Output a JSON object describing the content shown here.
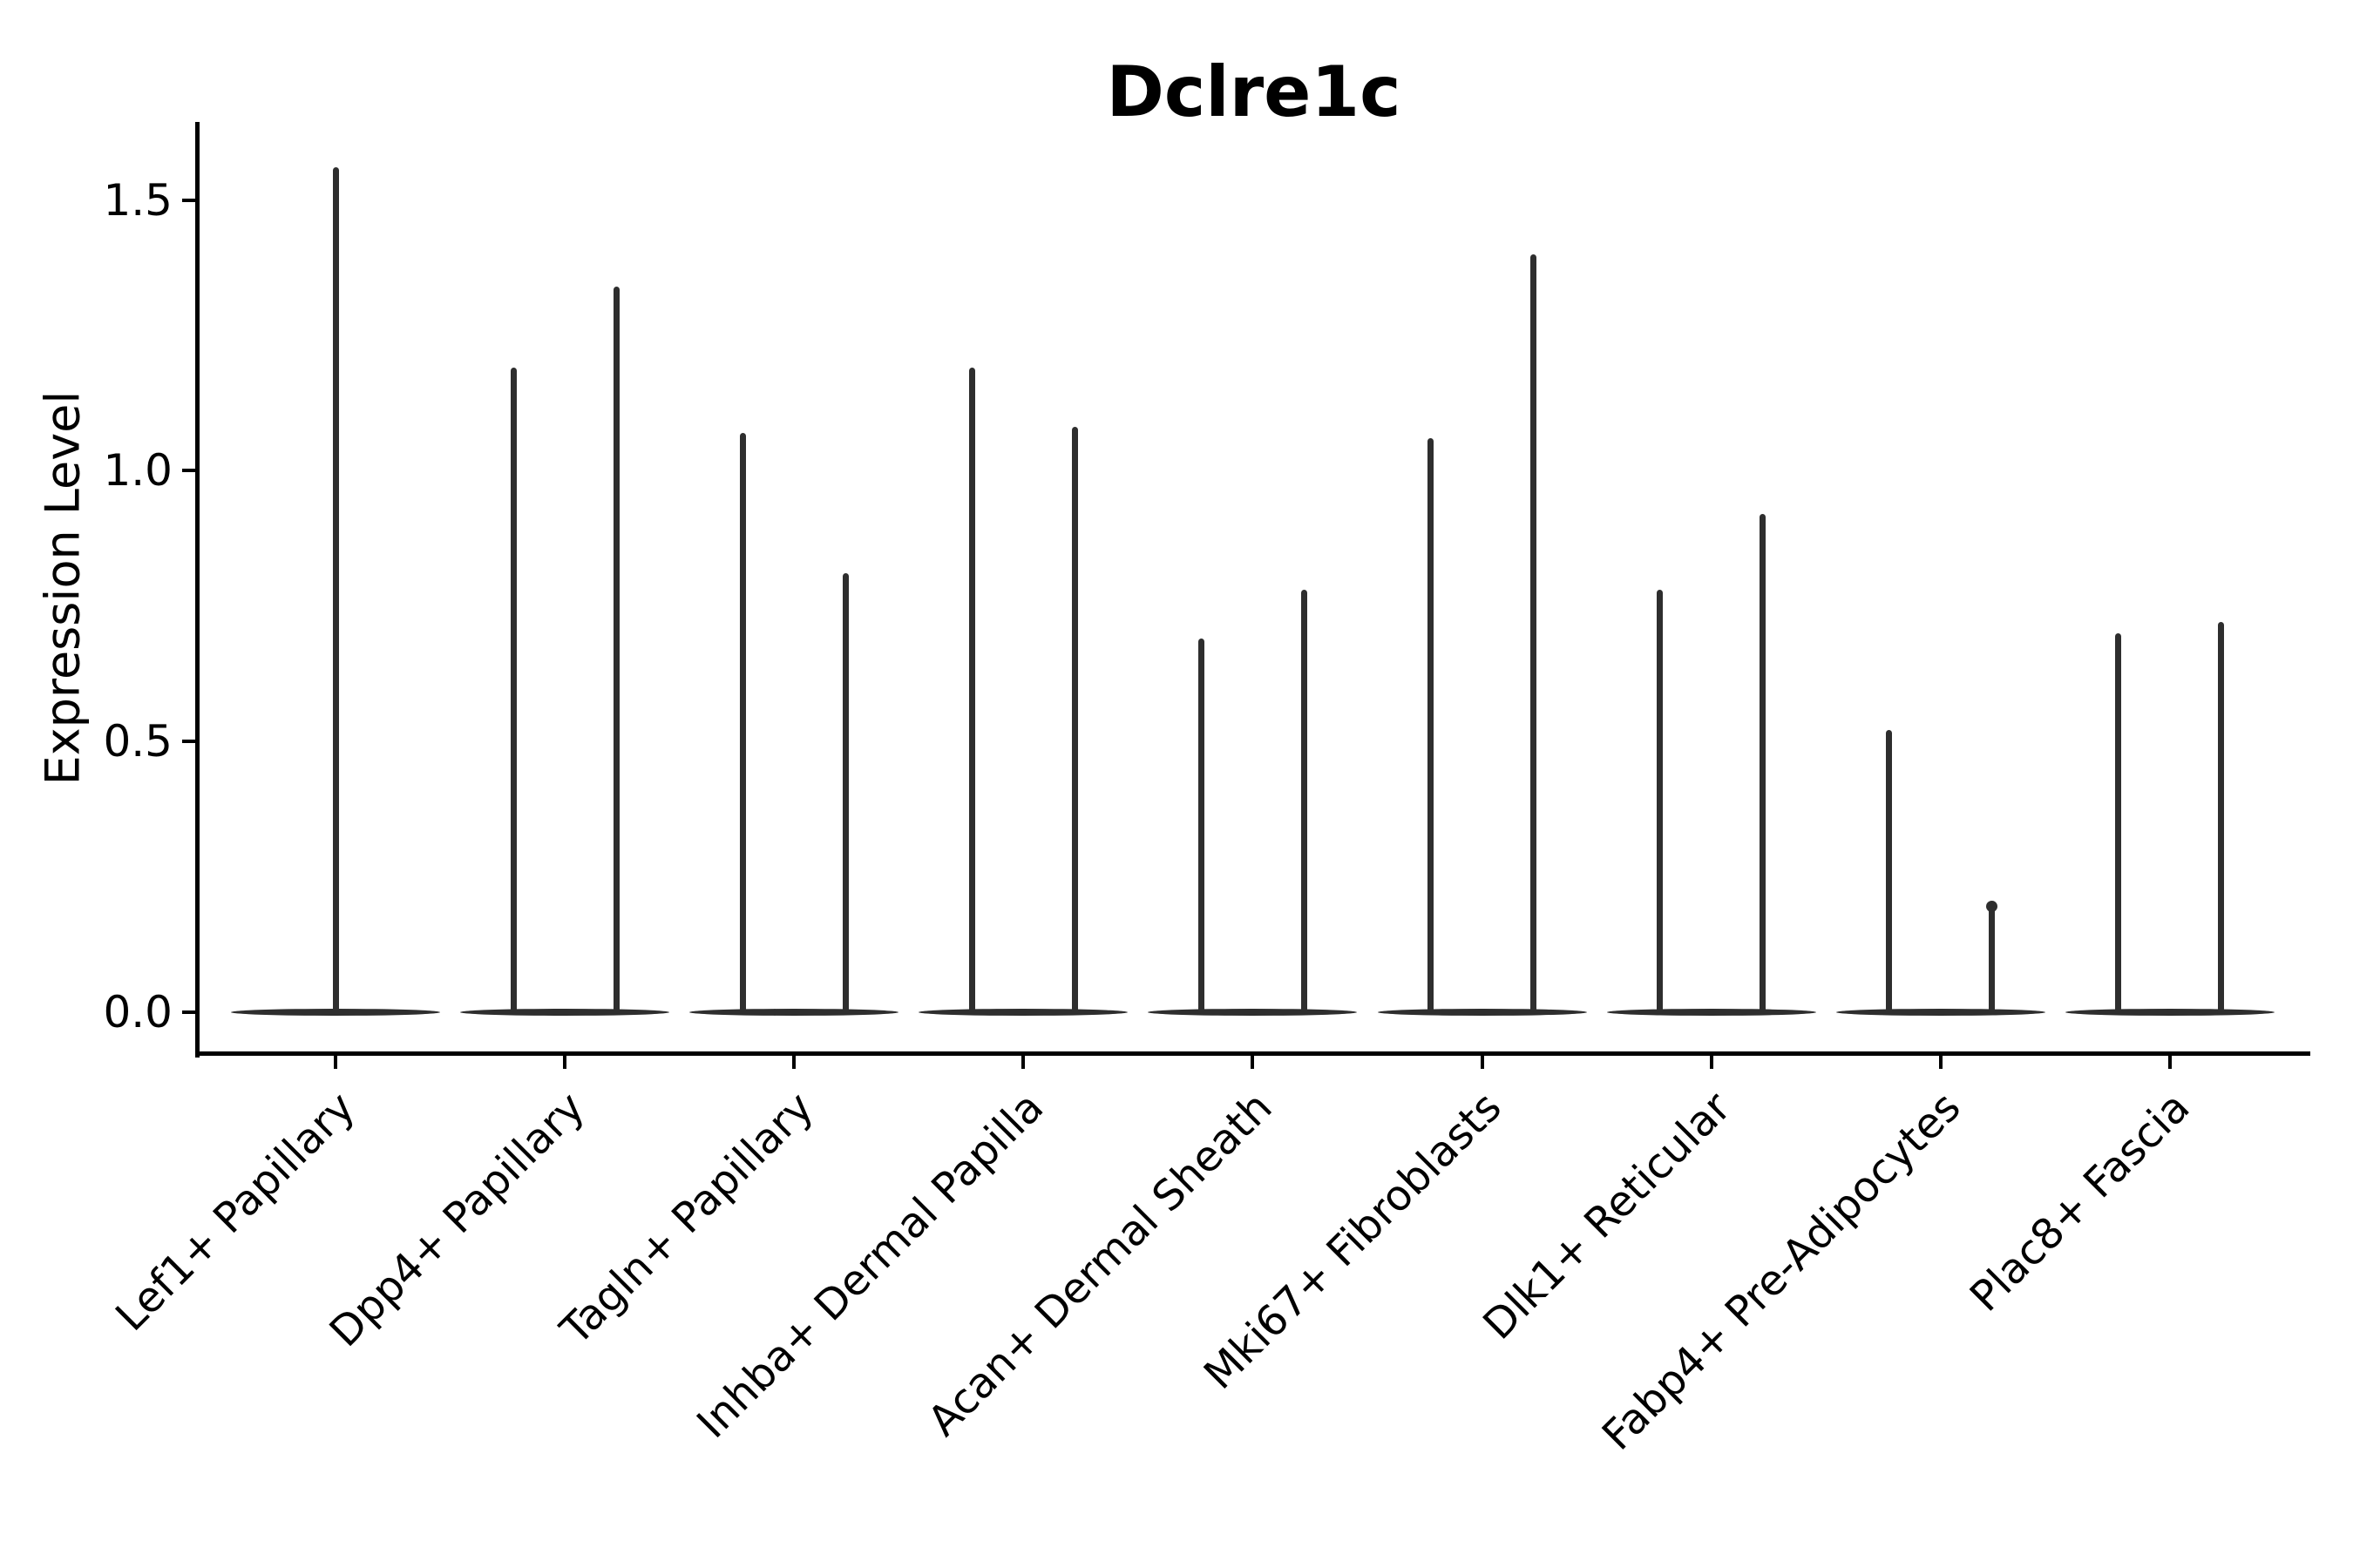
{
  "figure": {
    "title": "Dclre1c",
    "ylabel": "Expression Level"
  },
  "chart_data": {
    "type": "violin",
    "title": "Dclre1c",
    "xlabel": "",
    "ylabel": "Expression Level",
    "ylim": [
      -0.08,
      1.64
    ],
    "grid": false,
    "legend": null,
    "background": "#ffffff",
    "axis_color": "#000000",
    "violin_color": "#2e2e2e",
    "yticks": [
      {
        "value": 0.0,
        "label": "0.0"
      },
      {
        "value": 0.5,
        "label": "0.5"
      },
      {
        "value": 1.0,
        "label": "1.0"
      },
      {
        "value": 1.5,
        "label": "1.5"
      }
    ],
    "categories": [
      "Lef1+ Papillary",
      "Dpp4+ Papillary",
      "Tagln+ Papillary",
      "Inhba+ Dermal Papilla",
      "Acan+ Dermal Sheath",
      "Mki67+ Fibroblasts",
      "Dlk1+ Reticular",
      "Fabp4+ Pre-Adipocytes",
      "Plac8+ Fascia"
    ],
    "description": "Violin plot of Dclre1c expression; violins are near-zero flat bases with thin spikes up to the maximum expression value. Most categories show two violins side by side; Lef1+ Papillary shows a single centered violin.",
    "violin_max": [
      [
        1.56
      ],
      [
        1.19,
        1.34
      ],
      [
        1.07,
        0.81
      ],
      [
        1.19,
        1.08
      ],
      [
        0.69,
        0.78
      ],
      [
        1.06,
        1.4
      ],
      [
        0.78,
        0.92
      ],
      [
        0.52,
        0.2
      ],
      [
        0.7,
        0.72
      ]
    ],
    "tip_knob_violins": [
      [
        7,
        1
      ]
    ]
  }
}
